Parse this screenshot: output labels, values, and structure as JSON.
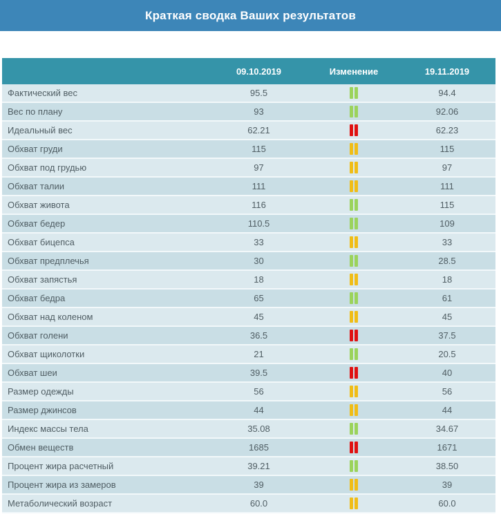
{
  "title": "Краткая сводка Ваших результатов",
  "table": {
    "columns": {
      "date_before": "09.10.2019",
      "change": "Изменение",
      "date_after": "19.11.2019"
    },
    "rows": [
      {
        "label": "Фактический вес",
        "before": "95.5",
        "status": "green",
        "after": "94.4"
      },
      {
        "label": "Вес по плану",
        "before": "93",
        "status": "green",
        "after": "92.06"
      },
      {
        "label": "Идеальный вес",
        "before": "62.21",
        "status": "red",
        "after": "62.23"
      },
      {
        "label": "Обхват груди",
        "before": "115",
        "status": "yellow",
        "after": "115"
      },
      {
        "label": "Обхват под грудью",
        "before": "97",
        "status": "yellow",
        "after": "97"
      },
      {
        "label": "Обхват талии",
        "before": "111",
        "status": "yellow",
        "after": "111"
      },
      {
        "label": "Обхват живота",
        "before": "116",
        "status": "green",
        "after": "115"
      },
      {
        "label": "Обхват бедер",
        "before": "110.5",
        "status": "green",
        "after": "109"
      },
      {
        "label": "Обхват бицепса",
        "before": "33",
        "status": "yellow",
        "after": "33"
      },
      {
        "label": "Обхват предплечья",
        "before": "30",
        "status": "green",
        "after": "28.5"
      },
      {
        "label": "Обхват запястья",
        "before": "18",
        "status": "yellow",
        "after": "18"
      },
      {
        "label": "Обхват бедра",
        "before": "65",
        "status": "green",
        "after": "61"
      },
      {
        "label": "Обхват над коленом",
        "before": "45",
        "status": "yellow",
        "after": "45"
      },
      {
        "label": "Обхват голени",
        "before": "36.5",
        "status": "red",
        "after": "37.5"
      },
      {
        "label": "Обхват щиколотки",
        "before": "21",
        "status": "green",
        "after": "20.5"
      },
      {
        "label": "Обхват шеи",
        "before": "39.5",
        "status": "red",
        "after": "40"
      },
      {
        "label": "Размер одежды",
        "before": "56",
        "status": "yellow",
        "after": "56"
      },
      {
        "label": "Размер джинсов",
        "before": "44",
        "status": "yellow",
        "after": "44"
      },
      {
        "label": "Индекс массы тела",
        "before": "35.08",
        "status": "green",
        "after": "34.67"
      },
      {
        "label": "Обмен веществ",
        "before": "1685",
        "status": "red",
        "after": "1671"
      },
      {
        "label": "Процент жира расчетный",
        "before": "39.21",
        "status": "green",
        "after": "38.50"
      },
      {
        "label": "Процент жира из замеров",
        "before": "39",
        "status": "yellow",
        "after": "39"
      },
      {
        "label": "Метаболический возраст",
        "before": "60.0",
        "status": "yellow",
        "after": "60.0"
      }
    ]
  },
  "colors": {
    "banner": "#3d86b8",
    "header": "#3594a9",
    "row_odd": "#dbe9ee",
    "row_even": "#c9dee5",
    "text": "#4f5d63",
    "green": "#9bd35c",
    "red": "#e01111",
    "yellow": "#f0bd16"
  }
}
